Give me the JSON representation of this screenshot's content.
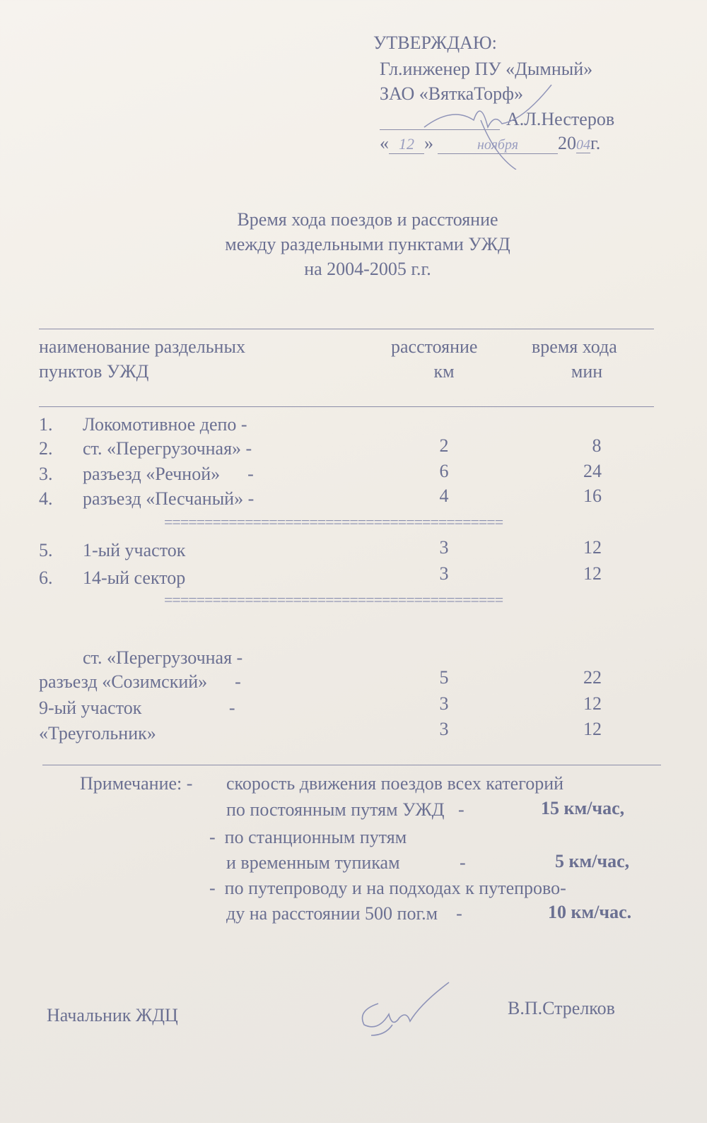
{
  "approval": {
    "heading": "УТВЕРЖДАЮ:",
    "position": "Гл.инженер ПУ «Дымный»",
    "company": "ЗАО «ВяткаТорф»",
    "name": "А.Л.Нестеров",
    "date_open": "«",
    "date_day": "12",
    "date_close": "»",
    "date_month": "ноября",
    "date_year_prefix": "20",
    "date_year_suffix": "04",
    "date_year_end": "г."
  },
  "title": {
    "line1": "Время хода поездов и расстояние",
    "line2": "между раздельными пунктами УЖД",
    "line3": "на 2004-2005 г.г."
  },
  "table": {
    "headers": {
      "name_line1": "наименование раздельных",
      "name_line2": "пунктов  УЖД",
      "distance_line1": "расстояние",
      "distance_line2": "км",
      "time_line1": "время хода",
      "time_line2": "мин"
    },
    "group1": [
      {
        "num": "1.",
        "name": "Локомотивное депо  -",
        "km": "",
        "min": ""
      },
      {
        "num": "2.",
        "name": "ст. «Перегрузочная» -",
        "km": "2",
        "min": "8"
      },
      {
        "num": "3.",
        "name": "разъезд «Речной»      -",
        "km": "6",
        "min": "24"
      },
      {
        "num": "4.",
        "name": "разъезд «Песчаный» -",
        "km": "4",
        "min": "16"
      }
    ],
    "group2": [
      {
        "num": "5.",
        "name": "1-ый участок",
        "km": "3",
        "min": "12"
      },
      {
        "num": "6.",
        "name": "14-ый сектор",
        "km": "3",
        "min": "12"
      }
    ],
    "group3": [
      {
        "name": "ст. «Перегрузочная  -",
        "km": "",
        "min": ""
      },
      {
        "name": "разъезд «Созимский»      -",
        "km": "5",
        "min": "22"
      },
      {
        "name": "9-ый участок                   -",
        "km": "3",
        "min": "12"
      },
      {
        "name": "«Треугольник»",
        "km": "3",
        "min": "12"
      }
    ],
    "separator": "=========================================="
  },
  "note": {
    "label": "Примечание: -",
    "l1": "скорость движения поездов всех категорий",
    "l2": "по постоянным путям УЖД   -",
    "l2_value": "15 км/час,",
    "l3": "-  по станционным путям",
    "l4": "и временным тупикам             -",
    "l4_value": "5 км/час,",
    "l5": "-  по путепроводу и на подходах к путепрово-",
    "l6": "ду на расстоянии 500 пог.м    -",
    "l6_value": "10 км/час."
  },
  "footer": {
    "position": "Начальник ЖДЦ",
    "name": "В.П.Стрелков"
  },
  "colors": {
    "ink": "#6b7092",
    "paper": "#f3f0ea",
    "pen": "#8e93b8"
  }
}
